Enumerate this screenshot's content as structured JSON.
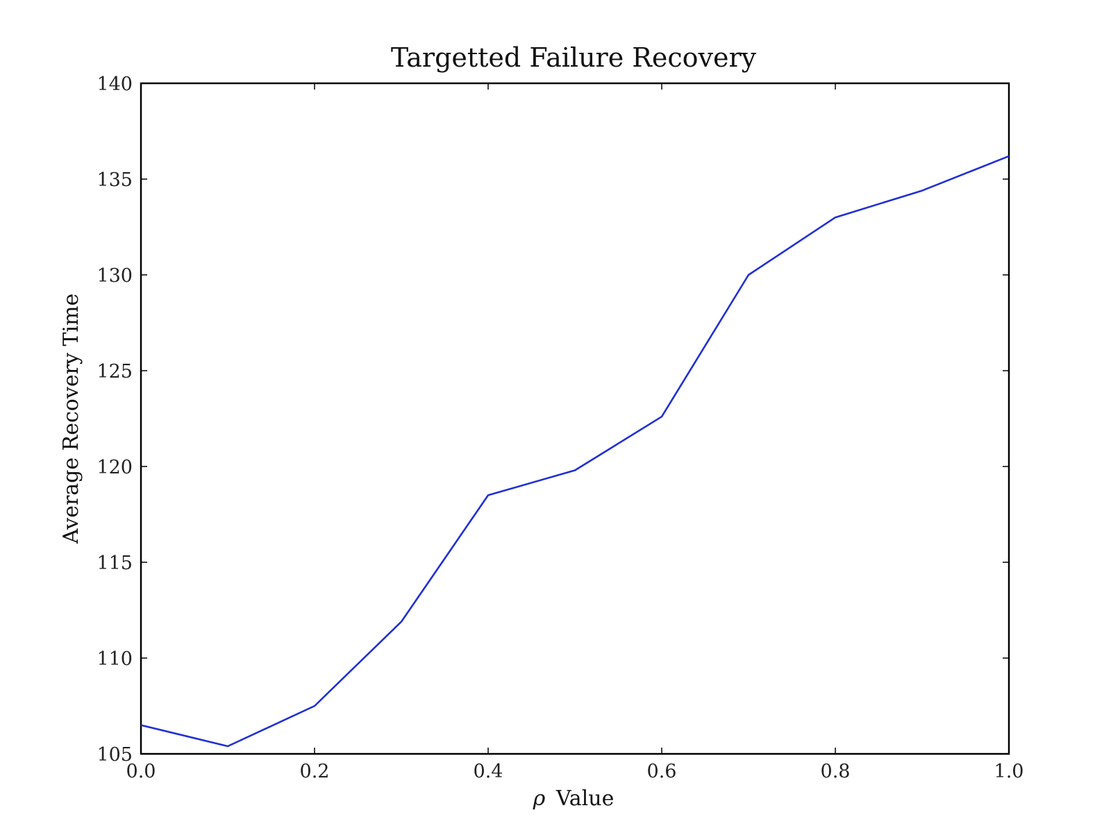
{
  "chart_data": {
    "type": "line",
    "title": "Targetted Failure Recovery",
    "xlabel_symbol": "ρ",
    "xlabel_text": "Value",
    "ylabel": "Average Recovery Time",
    "xlim": [
      0.0,
      1.0
    ],
    "ylim": [
      105,
      140
    ],
    "xticks": [
      "0.0",
      "0.2",
      "0.4",
      "0.6",
      "0.8",
      "1.0"
    ],
    "yticks": [
      "105",
      "110",
      "115",
      "120",
      "125",
      "130",
      "135",
      "140"
    ],
    "grid": false,
    "series": [
      {
        "color": "#1f2fd6",
        "x": [
          0.0,
          0.1,
          0.2,
          0.3,
          0.4,
          0.5,
          0.6,
          0.7,
          0.8,
          0.9,
          1.0
        ],
        "y": [
          106.5,
          105.4,
          107.5,
          111.9,
          118.5,
          119.8,
          122.6,
          130.0,
          133.0,
          134.4,
          136.2
        ]
      }
    ]
  }
}
